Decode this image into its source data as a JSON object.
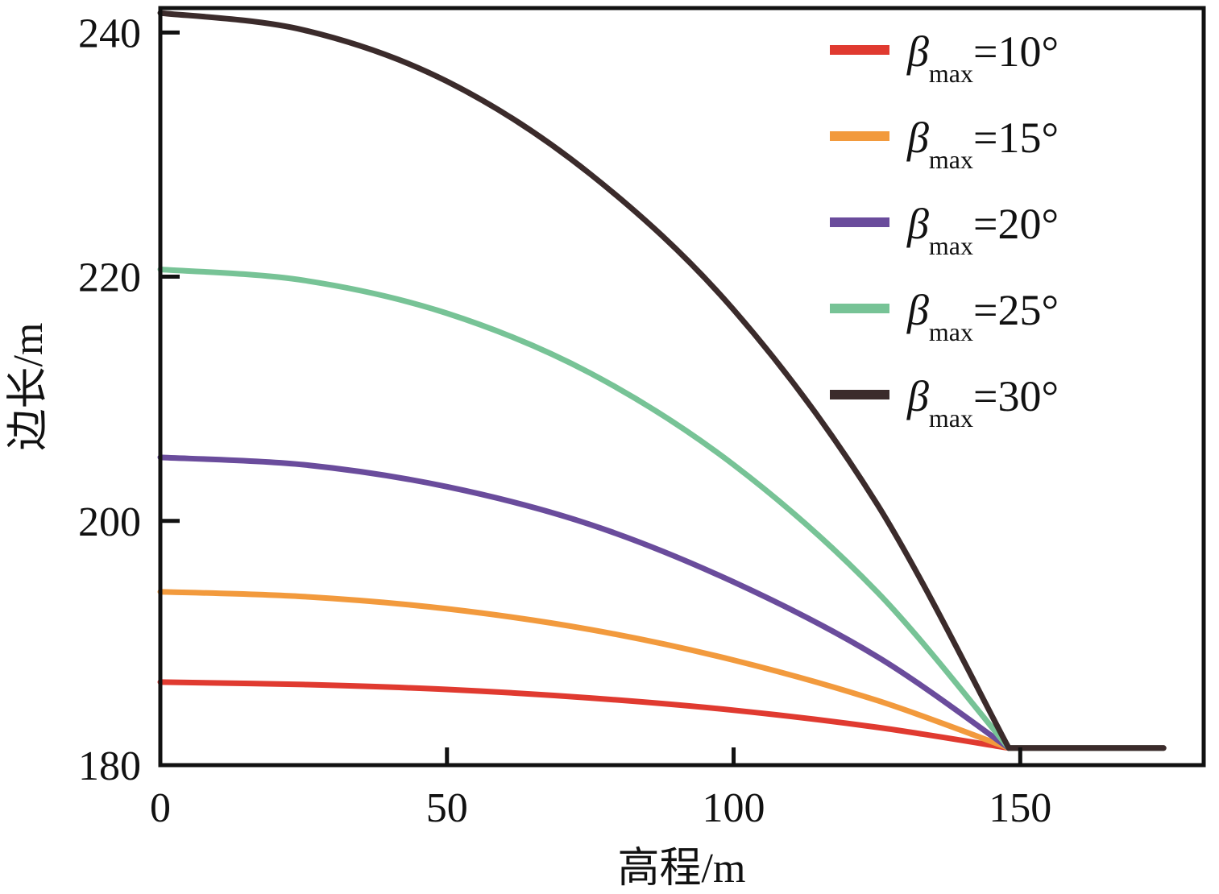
{
  "chart_data": {
    "type": "line",
    "xlabel": "高程/m",
    "ylabel": "边长/m",
    "xlim": [
      0,
      182
    ],
    "ylim": [
      180,
      242
    ],
    "xticks": [
      0,
      50,
      100,
      150
    ],
    "yticks": [
      180,
      200,
      220,
      240
    ],
    "xtick_labels": [
      "0",
      "50",
      "100",
      "150"
    ],
    "ytick_labels": [
      "180",
      "200",
      "220",
      "240"
    ],
    "grid": false,
    "legend_position": "top-right",
    "series": [
      {
        "name": "βmax=10°",
        "symbol": "β",
        "subscript": "max",
        "value_text": "=10°",
        "color": "#e03a30",
        "x": [
          0,
          25,
          50,
          75,
          100,
          125,
          148,
          150,
          160,
          175
        ],
        "y": [
          186.8,
          186.6,
          186.2,
          185.5,
          184.5,
          183.1,
          181.4,
          181.4,
          181.4,
          181.4
        ]
      },
      {
        "name": "βmax=15°",
        "symbol": "β",
        "subscript": "max",
        "value_text": "=15°",
        "color": "#f29a3d",
        "x": [
          0,
          25,
          50,
          75,
          100,
          125,
          148,
          150,
          160,
          175
        ],
        "y": [
          194.2,
          193.8,
          192.8,
          191.1,
          188.6,
          185.3,
          181.4,
          181.4,
          181.4,
          181.4
        ]
      },
      {
        "name": "βmax=20°",
        "symbol": "β",
        "subscript": "max",
        "value_text": "=20°",
        "color": "#6a4c9c",
        "x": [
          0,
          25,
          50,
          75,
          100,
          125,
          148,
          150,
          160,
          175
        ],
        "y": [
          205.2,
          204.6,
          202.8,
          199.7,
          195.0,
          188.9,
          181.4,
          181.4,
          181.4,
          181.4
        ]
      },
      {
        "name": "βmax=25°",
        "symbol": "β",
        "subscript": "max",
        "value_text": "=25°",
        "color": "#77c396",
        "x": [
          0,
          25,
          50,
          75,
          100,
          125,
          148,
          150,
          160,
          175
        ],
        "y": [
          220.6,
          219.7,
          217.0,
          212.1,
          204.6,
          194.2,
          181.4,
          181.4,
          181.4,
          181.4
        ]
      },
      {
        "name": "βmax=30°",
        "symbol": "β",
        "subscript": "max",
        "value_text": "=30°",
        "color": "#3b2b2b",
        "x": [
          0,
          25,
          50,
          75,
          100,
          125,
          148,
          150,
          160,
          175
        ],
        "y": [
          241.6,
          240.2,
          236.0,
          228.4,
          217.3,
          201.4,
          181.4,
          181.4,
          181.4,
          181.4
        ]
      }
    ]
  }
}
